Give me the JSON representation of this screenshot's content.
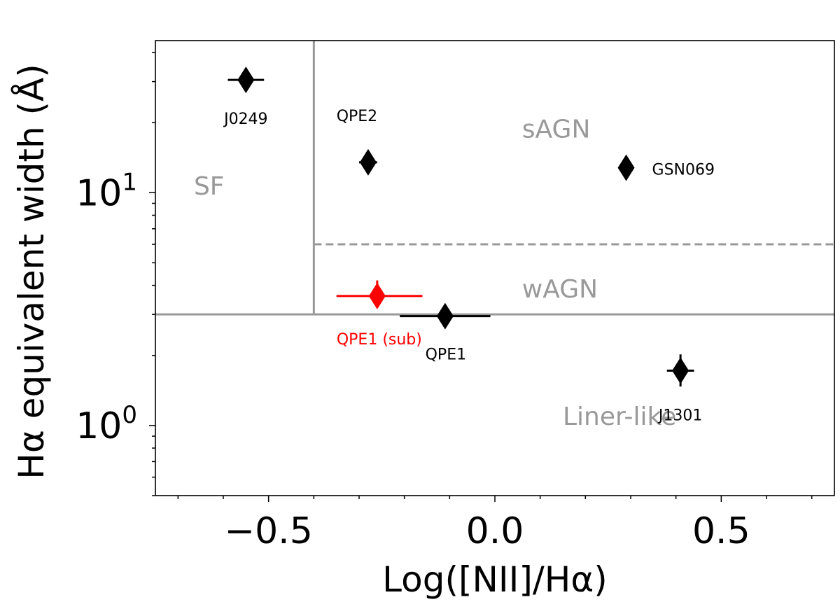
{
  "chart_data": {
    "type": "scatter",
    "xlabel": "Log([NII]/Hα)",
    "ylabel": "Hα equivalent width (Å)",
    "xlim": [
      -0.75,
      0.75
    ],
    "ylim": [
      0.5,
      45
    ],
    "yscale": "log",
    "x_ticks": [
      {
        "value": -0.5,
        "label": "−0.5"
      },
      {
        "value": 0.0,
        "label": "0.0"
      },
      {
        "value": 0.5,
        "label": "0.5"
      }
    ],
    "y_ticks": [
      {
        "value": 1,
        "base": "10",
        "exp": "0"
      },
      {
        "value": 10,
        "base": "10",
        "exp": "1"
      }
    ],
    "grid": false,
    "boundaries": {
      "sf_x": -0.4,
      "weak_line_ew": 3,
      "strong_weak_ew": 6,
      "color": "#999999"
    },
    "points": [
      {
        "label": "J0249",
        "x": -0.55,
        "y": 30.5,
        "xerr": [
          0.04,
          0.04
        ],
        "yerr": [
          1.5,
          1.5
        ],
        "color": "#000000"
      },
      {
        "label": "QPE2",
        "x": -0.28,
        "y": 13.5,
        "xerr": [
          0.02,
          0.02
        ],
        "yerr": [
          0.5,
          0.5
        ],
        "color": "#000000"
      },
      {
        "label": "GSN069",
        "x": 0.29,
        "y": 12.8,
        "xerr": [
          0.01,
          0.01
        ],
        "yerr": [
          0.3,
          0.3
        ],
        "color": "#000000"
      },
      {
        "label": "QPE1 (sub)",
        "x": -0.26,
        "y": 3.6,
        "xerr": [
          0.09,
          0.1
        ],
        "yerr": [
          0.35,
          0.6
        ],
        "color": "#ff0000"
      },
      {
        "label": "QPE1",
        "x": -0.11,
        "y": 2.95,
        "xerr": [
          0.1,
          0.1
        ],
        "yerr": [
          0.3,
          0.3
        ],
        "color": "#000000"
      },
      {
        "label": "J1301",
        "x": 0.41,
        "y": 1.72,
        "xerr": [
          0.03,
          0.03
        ],
        "yerr": [
          0.25,
          0.3
        ],
        "color": "#000000"
      }
    ],
    "region_labels": [
      {
        "text": "SF",
        "x": -0.665,
        "y": 10.5
      },
      {
        "text": "sAGN",
        "x": 0.06,
        "y": 18.5
      },
      {
        "text": "wAGN",
        "x": 0.06,
        "y": 3.8
      },
      {
        "text": "Liner-like",
        "x": 0.15,
        "y": 1.08
      }
    ]
  }
}
